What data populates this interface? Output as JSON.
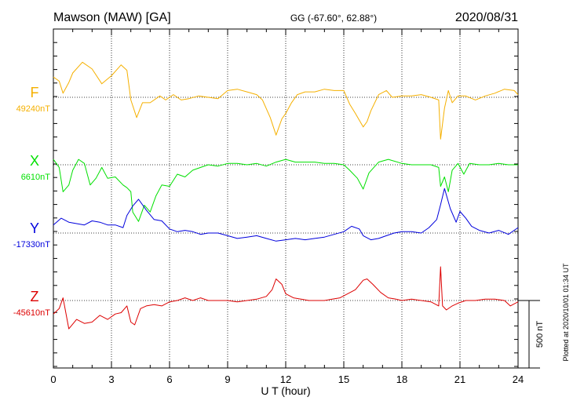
{
  "header": {
    "station": "Mawson (MAW)  [GA]",
    "coords": "GG (-67.60°,  62.88°)",
    "date": "2020/08/31"
  },
  "footer": {
    "plotted": "Plotted at 2020/10/01 01:34 UT",
    "scale_label": "500 nT"
  },
  "chart_data": {
    "type": "line",
    "xlabel": "U T (hour)",
    "xlim": [
      0,
      24
    ],
    "x_ticks": [
      "0",
      "3",
      "6",
      "9",
      "12",
      "15",
      "18",
      "21",
      "24"
    ],
    "grid": true,
    "scale_bar_nT": 500,
    "series": [
      {
        "name": "F",
        "baseline_label": "49240nT",
        "color": "#f5b000",
        "points": [
          [
            0,
            150
          ],
          [
            0.3,
            120
          ],
          [
            0.5,
            30
          ],
          [
            0.8,
            110
          ],
          [
            1.0,
            180
          ],
          [
            1.5,
            260
          ],
          [
            2.0,
            210
          ],
          [
            2.5,
            100
          ],
          [
            3.0,
            160
          ],
          [
            3.5,
            240
          ],
          [
            3.8,
            200
          ],
          [
            4.0,
            -20
          ],
          [
            4.3,
            -150
          ],
          [
            4.6,
            -40
          ],
          [
            5.0,
            -40
          ],
          [
            5.5,
            10
          ],
          [
            5.8,
            -20
          ],
          [
            6.2,
            20
          ],
          [
            6.6,
            -20
          ],
          [
            7.0,
            -10
          ],
          [
            7.5,
            10
          ],
          [
            8.0,
            0
          ],
          [
            8.5,
            -10
          ],
          [
            9.0,
            50
          ],
          [
            9.5,
            60
          ],
          [
            10.0,
            40
          ],
          [
            10.5,
            20
          ],
          [
            10.8,
            -20
          ],
          [
            11.2,
            -150
          ],
          [
            11.5,
            -280
          ],
          [
            11.8,
            -160
          ],
          [
            12.0,
            -120
          ],
          [
            12.3,
            -40
          ],
          [
            12.6,
            20
          ],
          [
            13.0,
            40
          ],
          [
            13.5,
            40
          ],
          [
            14.0,
            60
          ],
          [
            14.5,
            50
          ],
          [
            15.0,
            50
          ],
          [
            15.3,
            -50
          ],
          [
            15.6,
            -120
          ],
          [
            16.0,
            -220
          ],
          [
            16.2,
            -180
          ],
          [
            16.4,
            -100
          ],
          [
            16.8,
            20
          ],
          [
            17.2,
            50
          ],
          [
            17.5,
            0
          ],
          [
            18.0,
            10
          ],
          [
            18.5,
            10
          ],
          [
            19.0,
            20
          ],
          [
            19.5,
            0
          ],
          [
            19.9,
            -20
          ],
          [
            20.0,
            -310
          ],
          [
            20.2,
            -80
          ],
          [
            20.4,
            50
          ],
          [
            20.6,
            -40
          ],
          [
            20.9,
            10
          ],
          [
            21.3,
            10
          ],
          [
            21.8,
            -20
          ],
          [
            22.3,
            10
          ],
          [
            22.8,
            30
          ],
          [
            23.3,
            60
          ],
          [
            23.8,
            50
          ],
          [
            24.0,
            20
          ]
        ]
      },
      {
        "name": "X",
        "baseline_label": "6610nT",
        "color": "#00e000",
        "points": [
          [
            0,
            40
          ],
          [
            0.3,
            -20
          ],
          [
            0.5,
            -200
          ],
          [
            0.8,
            -150
          ],
          [
            1.0,
            -40
          ],
          [
            1.3,
            40
          ],
          [
            1.6,
            10
          ],
          [
            1.9,
            -150
          ],
          [
            2.2,
            -100
          ],
          [
            2.5,
            -20
          ],
          [
            2.8,
            -100
          ],
          [
            3.2,
            -90
          ],
          [
            3.6,
            -150
          ],
          [
            3.8,
            -170
          ],
          [
            4.0,
            -200
          ],
          [
            4.1,
            -350
          ],
          [
            4.4,
            -420
          ],
          [
            4.7,
            -300
          ],
          [
            5.0,
            -350
          ],
          [
            5.3,
            -230
          ],
          [
            5.6,
            -150
          ],
          [
            6.0,
            -160
          ],
          [
            6.4,
            -70
          ],
          [
            6.8,
            -90
          ],
          [
            7.2,
            -40
          ],
          [
            7.6,
            -20
          ],
          [
            8.0,
            0
          ],
          [
            8.5,
            -10
          ],
          [
            9.0,
            10
          ],
          [
            9.5,
            10
          ],
          [
            10.0,
            0
          ],
          [
            10.5,
            10
          ],
          [
            11.0,
            -10
          ],
          [
            11.5,
            20
          ],
          [
            12.0,
            40
          ],
          [
            12.5,
            20
          ],
          [
            13.0,
            20
          ],
          [
            13.5,
            20
          ],
          [
            14.0,
            10
          ],
          [
            14.5,
            10
          ],
          [
            15.0,
            0
          ],
          [
            15.3,
            -40
          ],
          [
            15.7,
            -100
          ],
          [
            16.0,
            -180
          ],
          [
            16.3,
            -60
          ],
          [
            16.8,
            20
          ],
          [
            17.3,
            40
          ],
          [
            18.0,
            10
          ],
          [
            18.5,
            0
          ],
          [
            19.0,
            0
          ],
          [
            19.5,
            0
          ],
          [
            19.9,
            -20
          ],
          [
            20.0,
            -160
          ],
          [
            20.2,
            -90
          ],
          [
            20.4,
            -200
          ],
          [
            20.6,
            -40
          ],
          [
            20.9,
            10
          ],
          [
            21.2,
            -70
          ],
          [
            21.5,
            10
          ],
          [
            22.0,
            0
          ],
          [
            22.5,
            0
          ],
          [
            23.0,
            10
          ],
          [
            23.5,
            0
          ],
          [
            24.0,
            0
          ]
        ]
      },
      {
        "name": "Y",
        "baseline_label": "-17330nT",
        "color": "#0000dd",
        "points": [
          [
            0,
            60
          ],
          [
            0.4,
            110
          ],
          [
            0.8,
            80
          ],
          [
            1.2,
            70
          ],
          [
            1.6,
            60
          ],
          [
            2.0,
            90
          ],
          [
            2.4,
            80
          ],
          [
            2.8,
            60
          ],
          [
            3.2,
            60
          ],
          [
            3.6,
            40
          ],
          [
            3.8,
            130
          ],
          [
            4.1,
            200
          ],
          [
            4.4,
            250
          ],
          [
            4.8,
            170
          ],
          [
            5.2,
            100
          ],
          [
            5.6,
            90
          ],
          [
            6.0,
            30
          ],
          [
            6.4,
            10
          ],
          [
            6.8,
            20
          ],
          [
            7.2,
            10
          ],
          [
            7.6,
            -10
          ],
          [
            8.0,
            0
          ],
          [
            8.5,
            0
          ],
          [
            9.0,
            -20
          ],
          [
            9.5,
            -40
          ],
          [
            10.0,
            -30
          ],
          [
            10.5,
            -20
          ],
          [
            11.0,
            -40
          ],
          [
            11.5,
            -60
          ],
          [
            12.0,
            -50
          ],
          [
            12.5,
            -40
          ],
          [
            13.0,
            -50
          ],
          [
            13.5,
            -40
          ],
          [
            14.0,
            -30
          ],
          [
            14.5,
            -10
          ],
          [
            15.0,
            10
          ],
          [
            15.4,
            50
          ],
          [
            15.8,
            30
          ],
          [
            16.0,
            -20
          ],
          [
            16.4,
            -50
          ],
          [
            16.8,
            -40
          ],
          [
            17.2,
            -20
          ],
          [
            17.6,
            0
          ],
          [
            18.0,
            10
          ],
          [
            18.5,
            10
          ],
          [
            19.0,
            0
          ],
          [
            19.4,
            40
          ],
          [
            19.8,
            100
          ],
          [
            20.0,
            210
          ],
          [
            20.2,
            330
          ],
          [
            20.5,
            180
          ],
          [
            20.8,
            80
          ],
          [
            21.0,
            160
          ],
          [
            21.3,
            110
          ],
          [
            21.6,
            50
          ],
          [
            22.0,
            20
          ],
          [
            22.5,
            0
          ],
          [
            23.0,
            20
          ],
          [
            23.5,
            -10
          ],
          [
            24.0,
            40
          ]
        ]
      },
      {
        "name": "Z",
        "baseline_label": "-45610nT",
        "color": "#dd0000",
        "points": [
          [
            0,
            -100
          ],
          [
            0.3,
            -60
          ],
          [
            0.5,
            20
          ],
          [
            0.8,
            -210
          ],
          [
            1.2,
            -140
          ],
          [
            1.6,
            -170
          ],
          [
            2.0,
            -160
          ],
          [
            2.4,
            -110
          ],
          [
            2.8,
            -140
          ],
          [
            3.2,
            -100
          ],
          [
            3.5,
            -90
          ],
          [
            3.8,
            -40
          ],
          [
            4.0,
            -160
          ],
          [
            4.2,
            -180
          ],
          [
            4.5,
            -60
          ],
          [
            4.8,
            -40
          ],
          [
            5.2,
            -30
          ],
          [
            5.6,
            -40
          ],
          [
            6.0,
            -10
          ],
          [
            6.4,
            0
          ],
          [
            6.8,
            20
          ],
          [
            7.2,
            0
          ],
          [
            7.6,
            20
          ],
          [
            8.0,
            0
          ],
          [
            8.5,
            0
          ],
          [
            9.0,
            0
          ],
          [
            9.5,
            -10
          ],
          [
            10.0,
            0
          ],
          [
            10.5,
            10
          ],
          [
            11.0,
            30
          ],
          [
            11.3,
            80
          ],
          [
            11.5,
            160
          ],
          [
            11.8,
            120
          ],
          [
            12.0,
            50
          ],
          [
            12.4,
            20
          ],
          [
            12.8,
            10
          ],
          [
            13.2,
            0
          ],
          [
            13.6,
            0
          ],
          [
            14.0,
            0
          ],
          [
            14.4,
            10
          ],
          [
            14.8,
            20
          ],
          [
            15.2,
            50
          ],
          [
            15.6,
            80
          ],
          [
            16.0,
            150
          ],
          [
            16.2,
            160
          ],
          [
            16.5,
            120
          ],
          [
            16.9,
            60
          ],
          [
            17.3,
            20
          ],
          [
            17.7,
            10
          ],
          [
            18.0,
            0
          ],
          [
            18.5,
            10
          ],
          [
            19.0,
            0
          ],
          [
            19.5,
            -10
          ],
          [
            19.9,
            -40
          ],
          [
            20.0,
            250
          ],
          [
            20.1,
            -40
          ],
          [
            20.3,
            -70
          ],
          [
            20.6,
            -40
          ],
          [
            20.9,
            -20
          ],
          [
            21.3,
            0
          ],
          [
            21.8,
            0
          ],
          [
            22.3,
            10
          ],
          [
            22.8,
            10
          ],
          [
            23.3,
            0
          ],
          [
            23.6,
            -40
          ],
          [
            24.0,
            -10
          ]
        ]
      }
    ]
  }
}
